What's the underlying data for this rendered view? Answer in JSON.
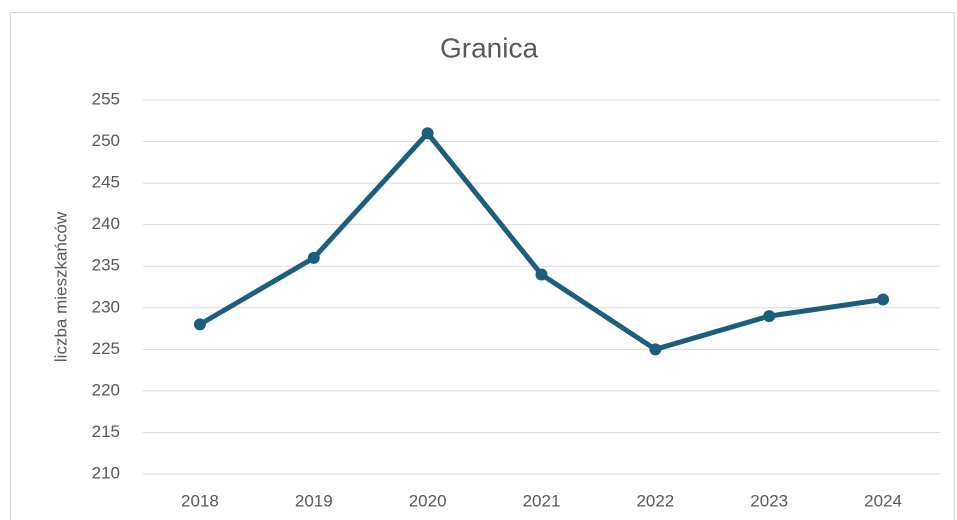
{
  "chart_data": {
    "type": "line",
    "title": "Granica",
    "y_label": "liczba mieszkańców",
    "categories": [
      "2018",
      "2019",
      "2020",
      "2021",
      "2022",
      "2023",
      "2024"
    ],
    "series": [
      {
        "name": "Granica",
        "color": "#1c5e7e",
        "values": [
          228,
          236,
          251,
          234,
          225,
          229,
          231
        ]
      }
    ],
    "ylim": [
      210,
      255
    ],
    "yticks": [
      210,
      215,
      220,
      225,
      230,
      235,
      240,
      245,
      250,
      255
    ],
    "grid": true
  }
}
